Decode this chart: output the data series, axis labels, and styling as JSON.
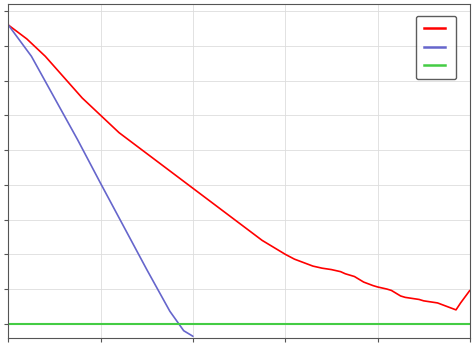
{
  "background_color": "#ffffff",
  "xlim": [
    0,
    1
  ],
  "ylim": [
    -0.02,
    0.46
  ],
  "red_line": {
    "x": [
      0.0,
      0.04,
      0.08,
      0.12,
      0.16,
      0.2,
      0.24,
      0.28,
      0.32,
      0.36,
      0.4,
      0.44,
      0.48,
      0.52,
      0.55,
      0.58,
      0.6,
      0.62,
      0.64,
      0.66,
      0.68,
      0.7,
      0.72,
      0.73,
      0.75,
      0.77,
      0.79,
      0.8,
      0.82,
      0.83,
      0.85,
      0.86,
      0.88,
      0.89,
      0.9,
      0.91,
      0.93,
      0.95,
      0.97,
      0.98,
      1.0
    ],
    "y": [
      0.43,
      0.41,
      0.385,
      0.355,
      0.325,
      0.3,
      0.275,
      0.255,
      0.235,
      0.215,
      0.195,
      0.175,
      0.155,
      0.135,
      0.12,
      0.108,
      0.1,
      0.093,
      0.088,
      0.083,
      0.08,
      0.078,
      0.075,
      0.072,
      0.068,
      0.06,
      0.055,
      0.053,
      0.05,
      0.048,
      0.04,
      0.038,
      0.036,
      0.035,
      0.033,
      0.032,
      0.03,
      0.025,
      0.02,
      0.03,
      0.048
    ],
    "color": "#ff0000",
    "linewidth": 1.2
  },
  "blue_line": {
    "x": [
      0.0,
      0.05,
      0.1,
      0.15,
      0.2,
      0.25,
      0.3,
      0.35,
      0.38,
      0.4
    ],
    "y": [
      0.43,
      0.385,
      0.325,
      0.265,
      0.202,
      0.14,
      0.078,
      0.018,
      -0.01,
      -0.018
    ],
    "color": "#6666cc",
    "linewidth": 1.2
  },
  "green_line": {
    "x": [
      0.0,
      1.0
    ],
    "y": [
      0.0,
      0.0
    ],
    "color": "#44cc44",
    "linewidth": 1.5
  },
  "legend_colors": [
    "#ff0000",
    "#6666cc",
    "#44cc44"
  ],
  "tick_x": [
    0.0,
    0.2,
    0.4,
    0.6,
    0.8,
    1.0
  ],
  "ytick_positions": [
    0.0,
    0.05,
    0.1,
    0.15,
    0.2,
    0.25,
    0.3,
    0.35,
    0.4,
    0.45
  ],
  "grid_color": "#dddddd",
  "spine_color": "#555555"
}
